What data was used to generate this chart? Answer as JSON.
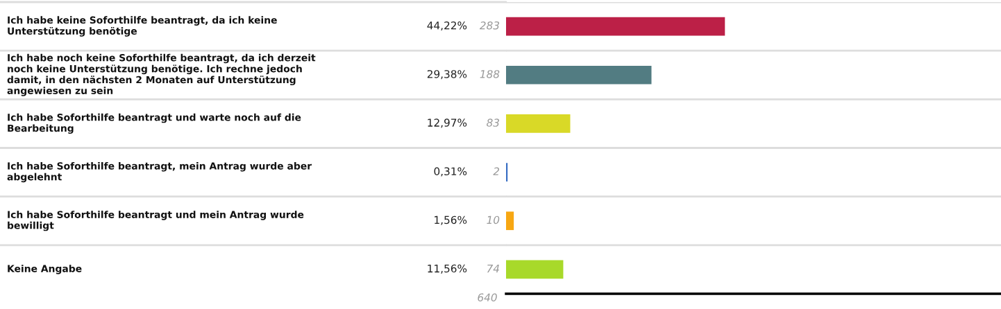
{
  "chart_data": {
    "type": "bar",
    "orientation": "horizontal",
    "categories": [
      "Ich habe keine Soforthilfe beantragt, da ich keine\nUnterstützung benötige",
      "Ich habe noch keine Soforthilfe beantragt, da ich derzeit\nnoch keine Unterstützung benötige. Ich rechne jedoch\ndamit, in den nächsten 2 Monaten auf Unterstützung\nangewiesen zu sein",
      "Ich habe Soforthilfe beantragt und warte noch auf die\nBearbeitung",
      "Ich habe Soforthilfe beantragt, mein Antrag wurde aber\nabgelehnt",
      "Ich habe Soforthilfe beantragt und mein Antrag wurde\nbewilligt",
      "Keine Angabe"
    ],
    "values": [
      44.22,
      29.38,
      12.97,
      0.31,
      1.56,
      11.56
    ],
    "colors": [
      "#bc2047",
      "#527c82",
      "#d9d927",
      "#3a6fc4",
      "#f7a713",
      "#a8d92a"
    ],
    "value_labels": [
      "44,22%",
      "29,38%",
      "12,97%",
      "0,31%",
      "1,56%",
      "11,56%"
    ],
    "tick_labels": "y",
    "grid": "y",
    "annotations": [
      "283",
      "188",
      "83",
      "2",
      "10",
      "74",
      "640"
    ]
  }
}
